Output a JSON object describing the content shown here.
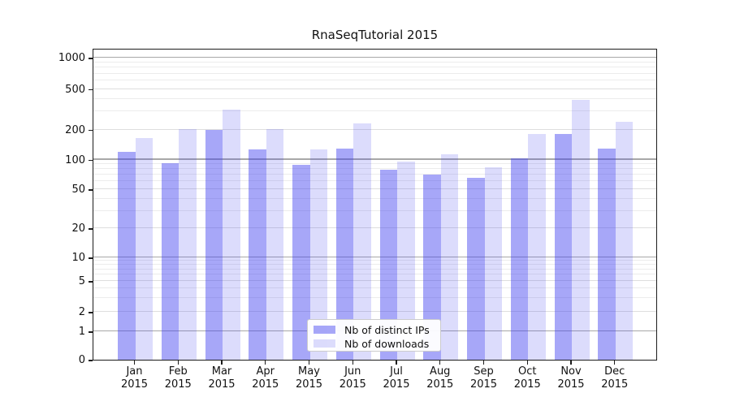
{
  "title": "RnaSeqTutorial 2015",
  "legend": {
    "position": "lower center",
    "items": [
      {
        "key": "ips",
        "label": "Nb of distinct IPs"
      },
      {
        "key": "downloads",
        "label": "Nb of downloads"
      }
    ]
  },
  "colors": {
    "bar_base": "#3c3cf0",
    "bar_ips_alpha": 0.45,
    "bar_downloads_alpha": 0.18,
    "grid_major": "#a8a8a8",
    "grid_labeled_minor": "#dedede",
    "grid_minor": "#ececec",
    "axis_text": "#111111"
  },
  "chart_data": {
    "type": "bar",
    "title": "RnaSeqTutorial 2015",
    "categories": [
      "Jan 2015",
      "Feb 2015",
      "Mar 2015",
      "Apr 2015",
      "May 2015",
      "Jun 2015",
      "Jul 2015",
      "Aug 2015",
      "Sep 2015",
      "Oct 2015",
      "Nov 2015",
      "Dec 2015"
    ],
    "series": [
      {
        "name": "Nb of distinct IPs",
        "key": "ips",
        "values": [
          120,
          92,
          200,
          127,
          88,
          130,
          79,
          71,
          65,
          103,
          182,
          129
        ]
      },
      {
        "name": "Nb of downloads",
        "key": "downloads",
        "values": [
          165,
          203,
          312,
          202,
          127,
          228,
          95,
          112,
          84,
          181,
          390,
          237
        ]
      }
    ],
    "xlabel": "",
    "ylabel": "",
    "yscale": "symlog",
    "ylim": [
      0,
      1240
    ],
    "ytick_labels": [
      "0",
      "1",
      "2",
      "5",
      "10",
      "20",
      "50",
      "100",
      "200",
      "500",
      "1000"
    ],
    "ytick_values": [
      0,
      1,
      2,
      5,
      10,
      20,
      50,
      100,
      200,
      500,
      1000
    ],
    "ytick_major_values": [
      1,
      10,
      100,
      1000
    ],
    "ytick_minor_values": [
      3,
      4,
      6,
      7,
      8,
      9,
      30,
      40,
      60,
      70,
      80,
      90,
      300,
      400,
      600,
      700,
      800,
      900
    ],
    "grid": true,
    "legend_position": "lower center"
  }
}
